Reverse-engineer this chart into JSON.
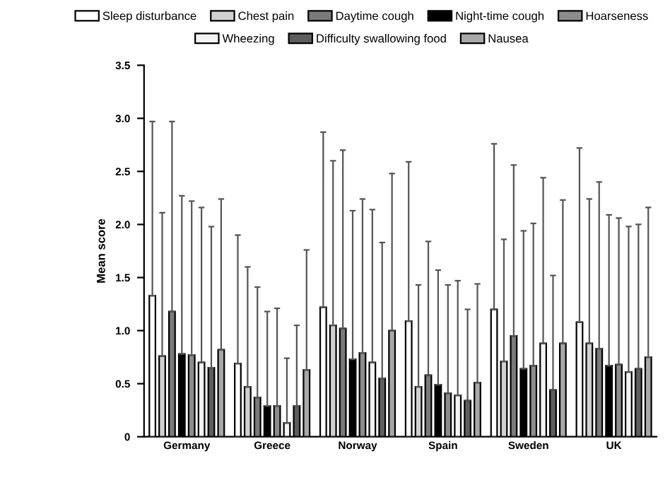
{
  "chart_data": {
    "type": "bar",
    "ylabel": "Mean score",
    "categories": [
      "Germany",
      "Greece",
      "Norway",
      "Spain",
      "Sweden",
      "UK"
    ],
    "ylim": [
      0,
      3.5
    ],
    "yticks": [
      {
        "value": 0,
        "label": "0"
      },
      0.5,
      {
        "value": 1,
        "label": "1.0"
      },
      1.5,
      {
        "value": 2,
        "label": "2.0"
      },
      2.5,
      {
        "value": 3,
        "label": "3.0"
      },
      3.5
    ],
    "legend": "top",
    "series": [
      {
        "name": "Sleep disturbance",
        "color": "#ffffff",
        "values": [
          1.33,
          0.69,
          1.22,
          1.09,
          1.2,
          1.08
        ],
        "errors": [
          [
            1.33,
            2.97
          ],
          [
            0.69,
            1.9
          ],
          [
            1.22,
            2.87
          ],
          [
            1.09,
            2.59
          ],
          [
            1.2,
            2.76
          ],
          [
            1.08,
            2.72
          ]
        ]
      },
      {
        "name": "Chest pain",
        "color": "#d0d0d0",
        "values": [
          0.76,
          0.47,
          1.05,
          0.47,
          0.71,
          0.88
        ],
        "errors": [
          [
            0.76,
            2.11
          ],
          [
            0.47,
            1.6
          ],
          [
            1.05,
            2.6
          ],
          [
            0.47,
            1.43
          ],
          [
            0.71,
            1.86
          ],
          [
            0.88,
            2.24
          ]
        ]
      },
      {
        "name": "Daytime cough",
        "color": "#7a7a7a",
        "values": [
          1.18,
          0.37,
          1.02,
          0.58,
          0.95,
          0.83
        ],
        "errors": [
          [
            1.18,
            2.97
          ],
          [
            0.37,
            1.41
          ],
          [
            1.02,
            2.7
          ],
          [
            0.58,
            1.84
          ],
          [
            0.95,
            2.56
          ],
          [
            0.83,
            2.4
          ]
        ]
      },
      {
        "name": "Night-time cough",
        "color": "#000000",
        "values": [
          0.78,
          0.29,
          0.73,
          0.49,
          0.64,
          0.67
        ],
        "errors": [
          [
            0.78,
            2.27
          ],
          [
            0.29,
            1.18
          ],
          [
            0.73,
            2.13
          ],
          [
            0.49,
            1.57
          ],
          [
            0.64,
            1.94
          ],
          [
            0.67,
            2.09
          ]
        ]
      },
      {
        "name": "Hoarseness",
        "color": "#8c8c8c",
        "values": [
          0.77,
          0.29,
          0.79,
          0.41,
          0.67,
          0.68
        ],
        "errors": [
          [
            0.77,
            2.22
          ],
          [
            0.29,
            1.21
          ],
          [
            0.79,
            2.24
          ],
          [
            0.41,
            1.43
          ],
          [
            0.67,
            2.01
          ],
          [
            0.68,
            2.06
          ]
        ]
      },
      {
        "name": "Wheezing",
        "color": "#f4f4f4",
        "values": [
          0.7,
          0.13,
          0.7,
          0.39,
          0.88,
          0.61
        ],
        "errors": [
          [
            0.7,
            2.16
          ],
          [
            0.13,
            0.74
          ],
          [
            0.7,
            2.14
          ],
          [
            0.39,
            1.47
          ],
          [
            0.88,
            2.44
          ],
          [
            0.61,
            1.98
          ]
        ]
      },
      {
        "name": "Difficulty swallowing food",
        "color": "#5e5e5e",
        "values": [
          0.65,
          0.29,
          0.55,
          0.34,
          0.44,
          0.64
        ],
        "errors": [
          [
            0.65,
            1.98
          ],
          [
            0.29,
            1.05
          ],
          [
            0.55,
            1.83
          ],
          [
            0.34,
            1.2
          ],
          [
            0.44,
            1.52
          ],
          [
            0.64,
            2.0
          ]
        ]
      },
      {
        "name": "Nausea",
        "color": "#a8a8a8",
        "values": [
          0.82,
          0.63,
          1.0,
          0.51,
          0.88,
          0.75
        ],
        "errors": [
          [
            0.82,
            2.24
          ],
          [
            0.63,
            1.76
          ],
          [
            1.0,
            2.48
          ],
          [
            0.51,
            1.44
          ],
          [
            0.88,
            2.23
          ],
          [
            0.75,
            2.16
          ]
        ]
      }
    ]
  }
}
